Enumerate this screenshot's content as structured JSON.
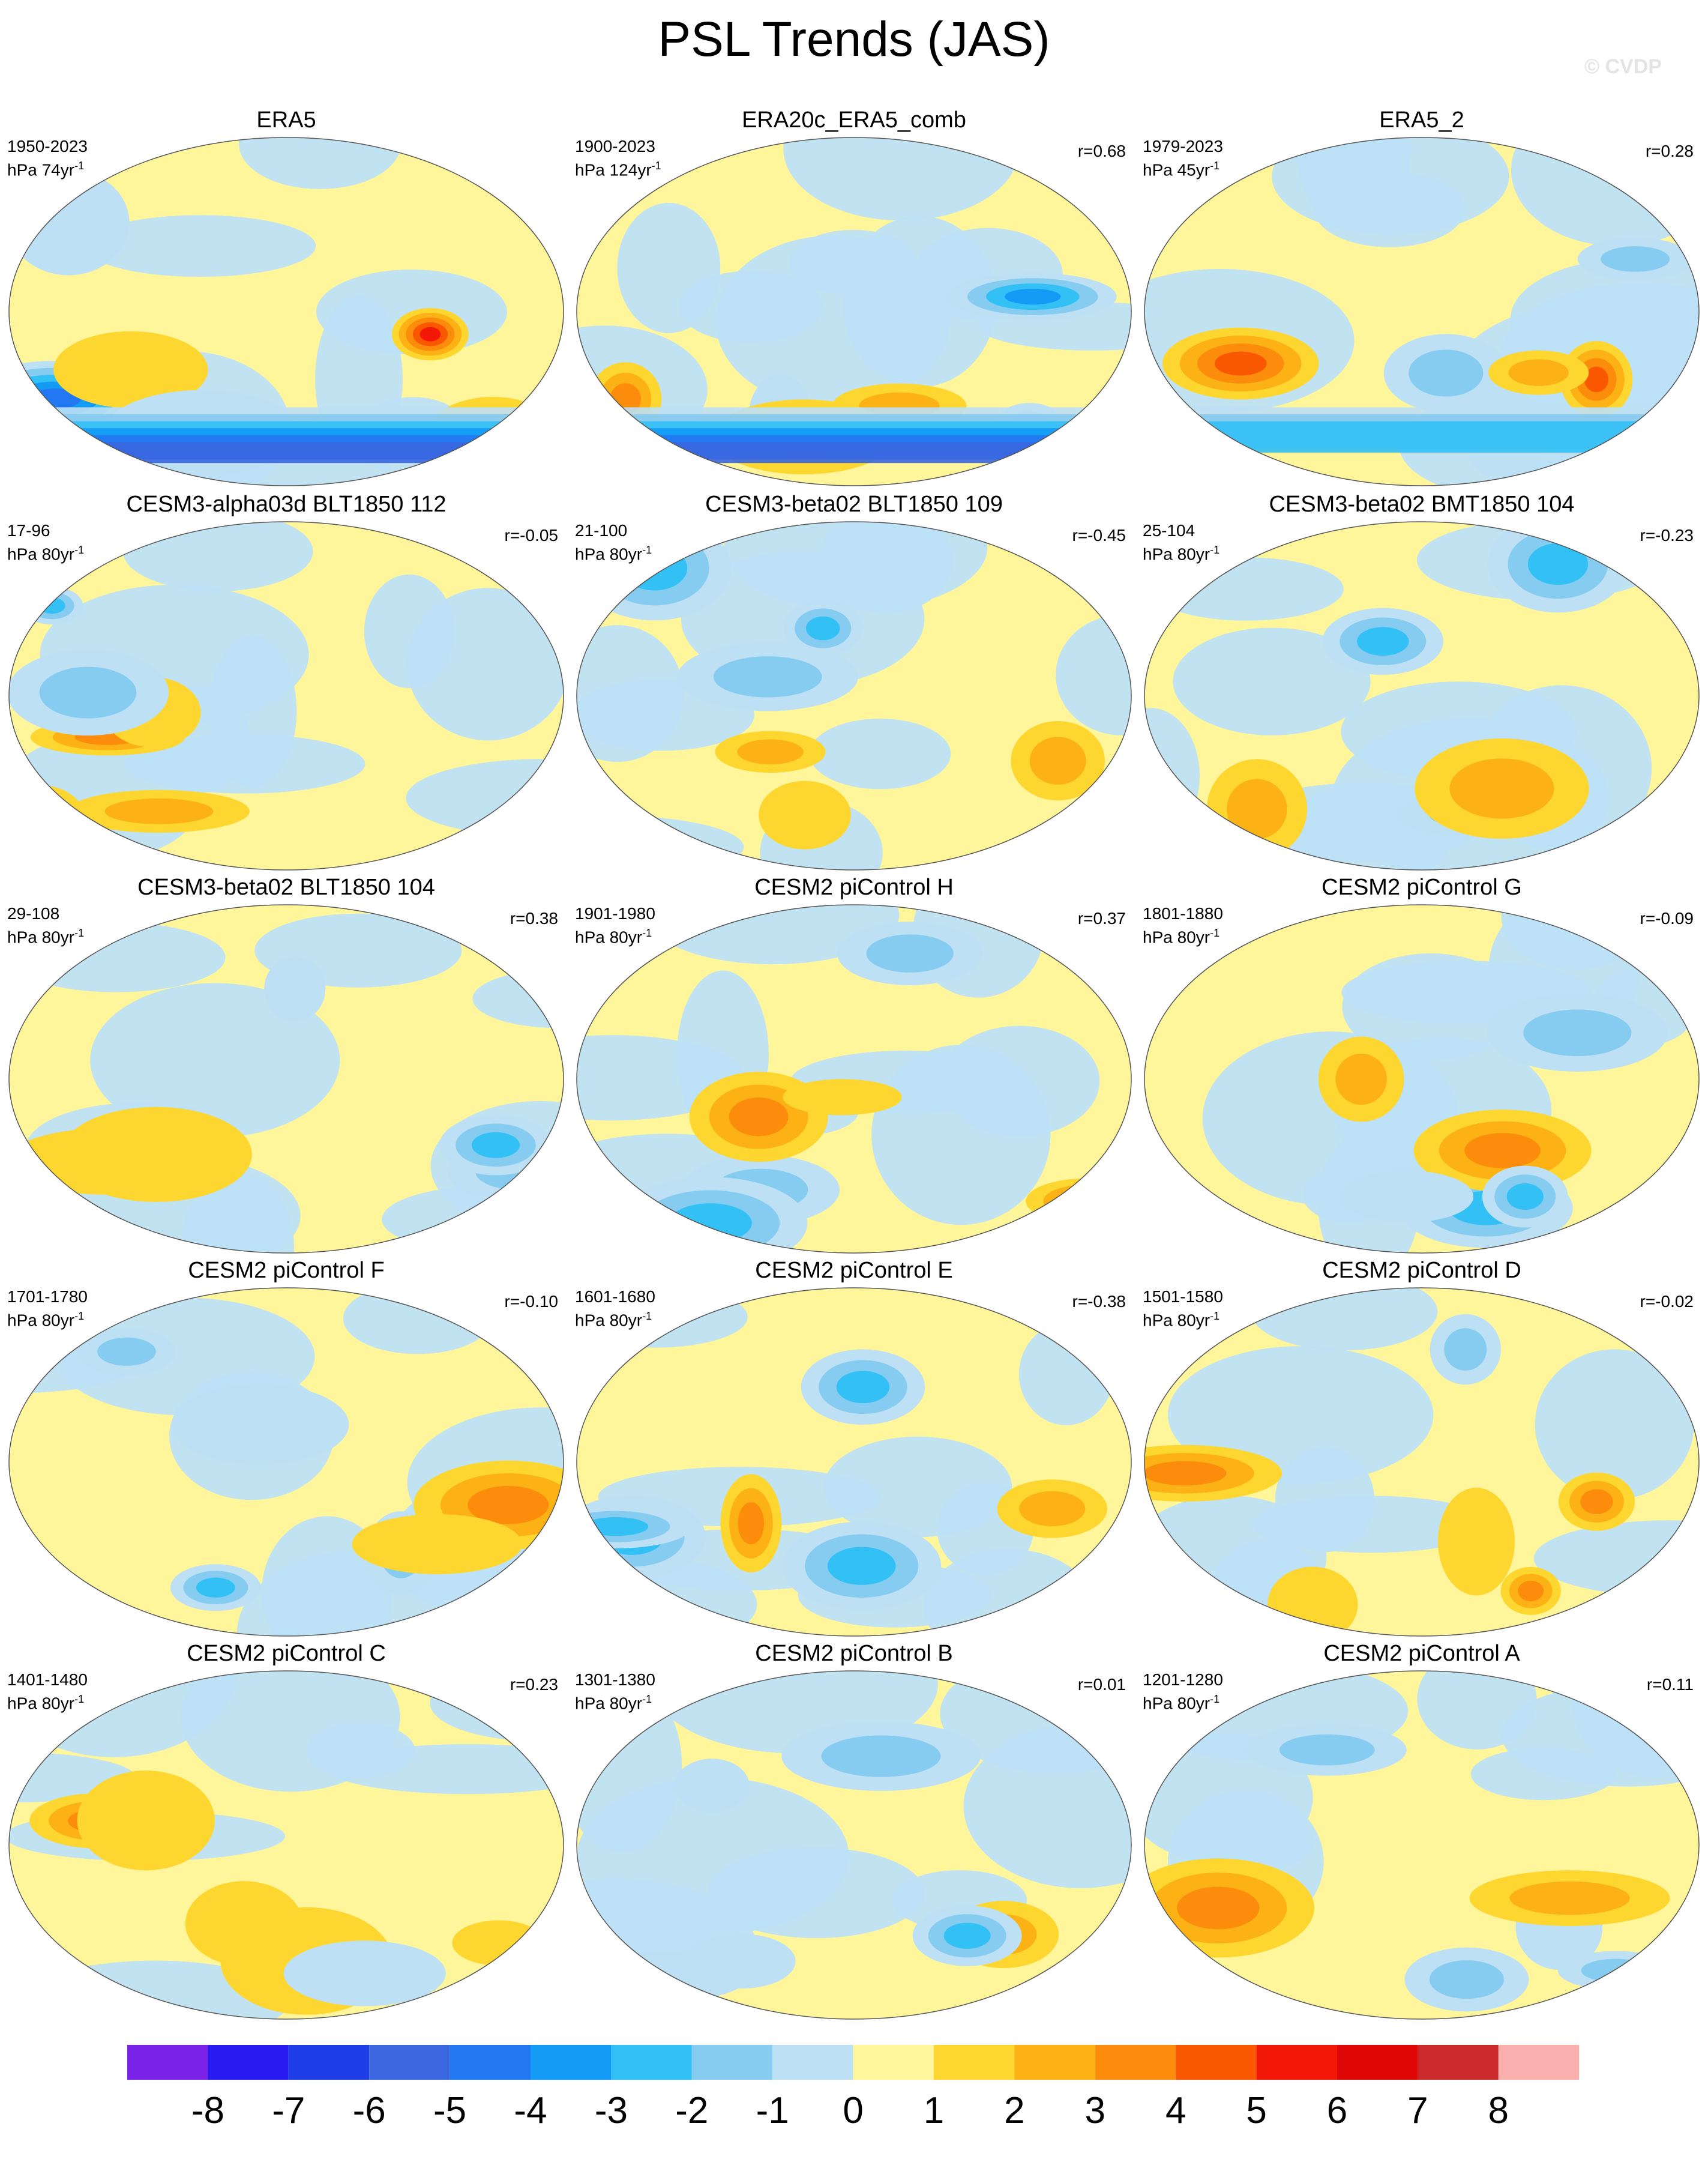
{
  "title": "PSL Trends (JAS)",
  "watermark": "© CVDP",
  "chart_data": {
    "type": "heatmap",
    "title": "PSL Trends (JAS)",
    "colorbar": {
      "tick_labels": [
        "-8",
        "-7",
        "-6",
        "-5",
        "-4",
        "-3",
        "-2",
        "-1",
        "0",
        "1",
        "2",
        "3",
        "4",
        "5",
        "6",
        "7",
        "8"
      ],
      "colors": [
        "#7a22e8",
        "#2a1af2",
        "#1f3de6",
        "#3a66e0",
        "#2277f2",
        "#129af5",
        "#32c0f5",
        "#86cbf0",
        "#bde0f5",
        "#fff59b",
        "#fdd630",
        "#fcb114",
        "#fb8c0c",
        "#fa5800",
        "#f41808",
        "#df0606",
        "#cb2a2a",
        "#fbb0b0"
      ]
    },
    "panels": [
      {
        "title": "ERA5",
        "period": "1950-2023",
        "units": "hPa 74yr",
        "units_sup": "-1",
        "r": ""
      },
      {
        "title": "ERA20c_ERA5_comb",
        "period": "1900-2023",
        "units": "hPa 124yr",
        "units_sup": "-1",
        "r": "r=0.68"
      },
      {
        "title": "ERA5_2",
        "period": "1979-2023",
        "units": "hPa 45yr",
        "units_sup": "-1",
        "r": "r=0.28"
      },
      {
        "title": "CESM3-alpha03d BLT1850 112",
        "period": "17-96",
        "units": "hPa 80yr",
        "units_sup": "-1",
        "r": "r=-0.05"
      },
      {
        "title": "CESM3-beta02 BLT1850 109",
        "period": "21-100",
        "units": "hPa 80yr",
        "units_sup": "-1",
        "r": "r=-0.45"
      },
      {
        "title": "CESM3-beta02 BMT1850 104",
        "period": "25-104",
        "units": "hPa 80yr",
        "units_sup": "-1",
        "r": "r=-0.23"
      },
      {
        "title": "CESM3-beta02 BLT1850 104",
        "period": "29-108",
        "units": "hPa 80yr",
        "units_sup": "-1",
        "r": "r=0.38"
      },
      {
        "title": "CESM2 piControl H",
        "period": "1901-1980",
        "units": "hPa 80yr",
        "units_sup": "-1",
        "r": "r=0.37"
      },
      {
        "title": "CESM2 piControl G",
        "period": "1801-1880",
        "units": "hPa 80yr",
        "units_sup": "-1",
        "r": "r=-0.09"
      },
      {
        "title": "CESM2 piControl F",
        "period": "1701-1780",
        "units": "hPa 80yr",
        "units_sup": "-1",
        "r": "r=-0.10"
      },
      {
        "title": "CESM2 piControl E",
        "period": "1601-1680",
        "units": "hPa 80yr",
        "units_sup": "-1",
        "r": "r=-0.38"
      },
      {
        "title": "CESM2 piControl D",
        "period": "1501-1580",
        "units": "hPa 80yr",
        "units_sup": "-1",
        "r": "r=-0.02"
      },
      {
        "title": "CESM2 piControl C",
        "period": "1401-1480",
        "units": "hPa 80yr",
        "units_sup": "-1",
        "r": "r=0.23"
      },
      {
        "title": "CESM2 piControl B",
        "period": "1301-1380",
        "units": "hPa 80yr",
        "units_sup": "-1",
        "r": "r=0.01"
      },
      {
        "title": "CESM2 piControl A",
        "period": "1201-1280",
        "units": "hPa 80yr",
        "units_sup": "-1",
        "r": "r=0.11"
      }
    ]
  }
}
